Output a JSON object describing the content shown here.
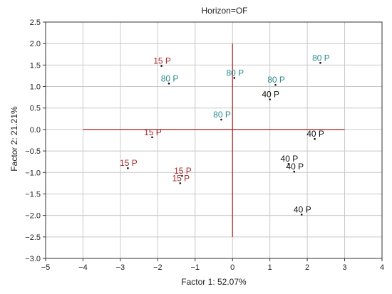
{
  "chart_data": {
    "type": "scatter",
    "title": "Horizon=OF",
    "xlabel": "Factor 1: 52.07%",
    "ylabel": "Factor 2: 21.21%",
    "xlim": [
      -5,
      4
    ],
    "ylim": [
      -3.0,
      2.5
    ],
    "xticks": [
      "−5",
      "−4",
      "−3",
      "−2",
      "−1",
      "0",
      "1",
      "2",
      "3",
      "4"
    ],
    "yticks": [
      "2.5",
      "2.0",
      "1.5",
      "1.0",
      "0.5",
      "0.0",
      "−0.5",
      "−1.0",
      "−1.5",
      "−2.0",
      "−2.5",
      "−3.0"
    ],
    "grid": true,
    "reference_lines": {
      "x": 0,
      "y": 0,
      "x_range": [
        -4,
        3
      ],
      "y_range": [
        -2.5,
        2.0
      ],
      "color": "#b02020"
    },
    "colors": {
      "15 P": "#a52a2a",
      "80 P": "#2a8a8a",
      "40 P": "#111111"
    },
    "points": [
      {
        "label": "15 P",
        "x": -1.9,
        "y": 1.48
      },
      {
        "label": "15 P",
        "x": -2.15,
        "y": -0.18
      },
      {
        "label": "15 P",
        "x": -2.8,
        "y": -0.9
      },
      {
        "label": "15 P",
        "x": -1.35,
        "y": -1.08
      },
      {
        "label": "15 P",
        "x": -1.4,
        "y": -1.25
      },
      {
        "label": "80 P",
        "x": -1.7,
        "y": 1.07
      },
      {
        "label": "80 P",
        "x": 0.05,
        "y": 1.2
      },
      {
        "label": "80 P",
        "x": 1.15,
        "y": 1.04
      },
      {
        "label": "80 P",
        "x": 2.35,
        "y": 1.55
      },
      {
        "label": "80 P",
        "x": -0.3,
        "y": 0.23
      },
      {
        "label": "40 P",
        "x": 1.0,
        "y": 0.7
      },
      {
        "label": "40 P",
        "x": 2.2,
        "y": -0.22
      },
      {
        "label": "40 P",
        "x": 1.5,
        "y": -0.8
      },
      {
        "label": "40 P",
        "x": 1.65,
        "y": -0.98
      },
      {
        "label": "40 P",
        "x": 1.85,
        "y": -1.98
      }
    ]
  }
}
